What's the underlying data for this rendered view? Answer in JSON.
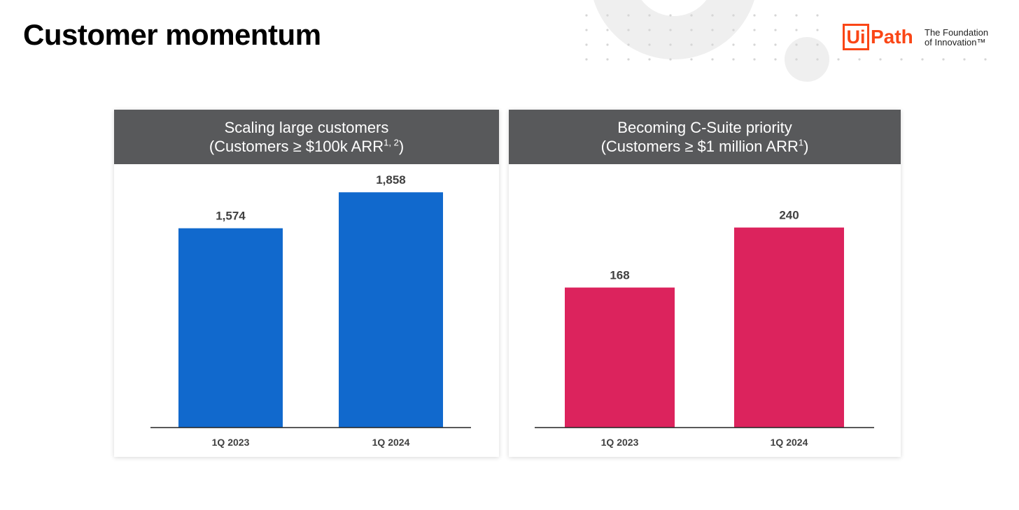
{
  "page": {
    "title": "Customer momentum"
  },
  "logo": {
    "box_text": "Ui",
    "word": "Path",
    "tagline_line1": "The Foundation",
    "tagline_line2": "of Innovation™",
    "color": "#fa4616"
  },
  "decor": {
    "circle_color": "#efefef",
    "dot_color": "#d6d6d6"
  },
  "chart_data": [
    {
      "type": "bar",
      "title": "Scaling large customers",
      "subtitle": "(Customers ≥ $100k ARR",
      "subtitle_sup": "1, 2",
      "subtitle_end": ")",
      "categories": [
        "1Q 2023",
        "1Q 2024"
      ],
      "values": [
        1574,
        1858
      ],
      "value_labels": [
        "1,574",
        "1,858"
      ],
      "ylim": [
        0,
        2080
      ],
      "bar_color": "#1169cd",
      "grid": false
    },
    {
      "type": "bar",
      "title": "Becoming C-Suite priority",
      "subtitle": "(Customers ≥ $1 million ARR",
      "subtitle_sup": "1",
      "subtitle_end": ")",
      "categories": [
        "1Q 2023",
        "1Q 2024"
      ],
      "values": [
        168,
        240
      ],
      "value_labels": [
        "168",
        "240"
      ],
      "ylim": [
        0,
        316
      ],
      "bar_color": "#dc235d",
      "grid": false
    }
  ]
}
